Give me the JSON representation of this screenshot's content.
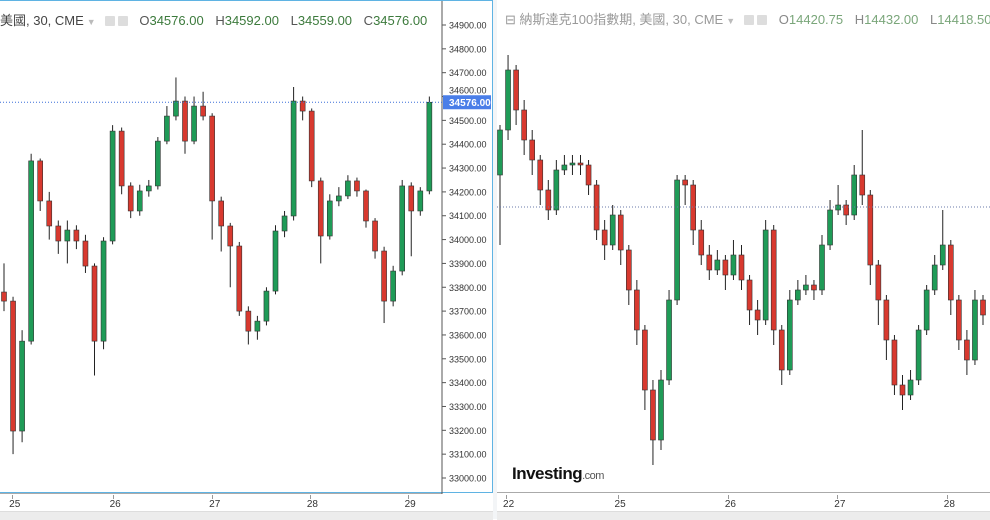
{
  "colors": {
    "up": "#1f9b57",
    "down": "#d8392f",
    "wick": "#222222",
    "price_line": "#3a6fd8",
    "price_label_bg": "#4a7ee8",
    "right_line": "#6a7aa8"
  },
  "left": {
    "title": "美國, 30, CME",
    "ohlc": {
      "o_label": "O",
      "o": "34576.00",
      "h_label": "H",
      "h": "34592.00",
      "l_label": "L",
      "l": "34559.00",
      "c_label": "C",
      "c": "34576.00"
    },
    "last_price_label": "34576.00"
  },
  "right": {
    "title": "納斯達克100指數期, 美國, 30, CME",
    "ohlc": {
      "o_label": "O",
      "o": "14420.75",
      "h_label": "H",
      "h": "14432.00",
      "l_label": "L",
      "l": "14418.50"
    },
    "logo": "Investing",
    "logo_suffix": ".com"
  },
  "chart_data": [
    {
      "type": "candlestick",
      "ylim": [
        33000,
        34900
      ],
      "yticks": [
        "34900.00",
        "34800.00",
        "34700.00",
        "34600.00",
        "34500.00",
        "34400.00",
        "34300.00",
        "34200.00",
        "34100.00",
        "34000.00",
        "33900.00",
        "33800.00",
        "33700.00",
        "33600.00",
        "33500.00",
        "33400.00",
        "33300.00",
        "33200.00",
        "33100.00",
        "33000.00"
      ],
      "xticks": [
        {
          "label": "25",
          "index": 0.9
        },
        {
          "label": "26",
          "index": 12
        },
        {
          "label": "27",
          "index": 23
        },
        {
          "label": "28",
          "index": 33.8
        },
        {
          "label": "29",
          "index": 44.6
        }
      ],
      "last_price": 34576,
      "candles": [
        [
          33780,
          33900,
          33700,
          33742
        ],
        [
          33742,
          33760,
          33100,
          33197
        ],
        [
          33197,
          33620,
          33150,
          33574
        ],
        [
          33574,
          34360,
          33560,
          34330
        ],
        [
          34330,
          34340,
          34120,
          34162
        ],
        [
          34162,
          34200,
          34000,
          34057
        ],
        [
          34057,
          34080,
          33940,
          33994
        ],
        [
          33994,
          34080,
          33900,
          34040
        ],
        [
          34040,
          34060,
          33960,
          33994
        ],
        [
          33994,
          34020,
          33860,
          33889
        ],
        [
          33889,
          33900,
          33430,
          33574
        ],
        [
          33574,
          34010,
          33540,
          33994
        ],
        [
          33994,
          34480,
          33980,
          34455
        ],
        [
          34455,
          34470,
          34190,
          34225
        ],
        [
          34225,
          34240,
          34090,
          34120
        ],
        [
          34120,
          34230,
          34100,
          34204
        ],
        [
          34204,
          34250,
          34180,
          34225
        ],
        [
          34225,
          34430,
          34210,
          34413
        ],
        [
          34413,
          34560,
          34400,
          34518
        ],
        [
          34518,
          34680,
          34500,
          34581
        ],
        [
          34581,
          34600,
          34360,
          34413
        ],
        [
          34413,
          34600,
          34400,
          34560
        ],
        [
          34560,
          34620,
          34500,
          34518
        ],
        [
          34518,
          34530,
          34000,
          34162
        ],
        [
          34162,
          34180,
          33950,
          34057
        ],
        [
          34057,
          34070,
          33800,
          33973
        ],
        [
          33973,
          33990,
          33680,
          33700
        ],
        [
          33700,
          33720,
          33560,
          33616
        ],
        [
          33616,
          33680,
          33580,
          33658
        ],
        [
          33658,
          33800,
          33640,
          33784
        ],
        [
          33784,
          34060,
          33770,
          34036
        ],
        [
          34036,
          34120,
          34010,
          34099
        ],
        [
          34099,
          34640,
          34080,
          34581
        ],
        [
          34581,
          34600,
          34500,
          34539
        ],
        [
          34539,
          34550,
          34220,
          34246
        ],
        [
          34246,
          34260,
          33900,
          34015
        ],
        [
          34015,
          34190,
          34000,
          34162
        ],
        [
          34162,
          34220,
          34140,
          34183
        ],
        [
          34183,
          34270,
          34170,
          34246
        ],
        [
          34246,
          34260,
          34180,
          34204
        ],
        [
          34204,
          34210,
          34050,
          34078
        ],
        [
          34078,
          34090,
          33920,
          33952
        ],
        [
          33952,
          33970,
          33650,
          33742
        ],
        [
          33742,
          33890,
          33720,
          33868
        ],
        [
          33868,
          34250,
          33850,
          34225
        ],
        [
          34225,
          34240,
          33930,
          34120
        ],
        [
          34120,
          34220,
          34100,
          34204
        ],
        [
          34204,
          34600,
          34190,
          34576
        ]
      ]
    },
    {
      "type": "candlestick",
      "ylim": [
        14070,
        15050
      ],
      "xticks": [
        {
          "label": "22",
          "index": 0.75
        },
        {
          "label": "25",
          "index": 14.6
        },
        {
          "label": "26",
          "index": 28.3
        },
        {
          "label": "27",
          "index": 41.9
        },
        {
          "label": "28",
          "index": 55.5
        }
      ],
      "reference_line": 14636,
      "candles": [
        [
          14700,
          14800,
          14560,
          14790
        ],
        [
          14790,
          14940,
          14770,
          14910
        ],
        [
          14910,
          14920,
          14800,
          14830
        ],
        [
          14830,
          14850,
          14740,
          14770
        ],
        [
          14770,
          14790,
          14700,
          14730
        ],
        [
          14730,
          14740,
          14640,
          14670
        ],
        [
          14670,
          14690,
          14610,
          14630
        ],
        [
          14630,
          14730,
          14620,
          14710
        ],
        [
          14710,
          14740,
          14700,
          14720
        ],
        [
          14720,
          14740,
          14700,
          14724
        ],
        [
          14724,
          14740,
          14700,
          14720
        ],
        [
          14720,
          14730,
          14660,
          14680
        ],
        [
          14680,
          14690,
          14570,
          14590
        ],
        [
          14590,
          14610,
          14530,
          14560
        ],
        [
          14560,
          14640,
          14550,
          14620
        ],
        [
          14620,
          14630,
          14520,
          14550
        ],
        [
          14550,
          14560,
          14440,
          14470
        ],
        [
          14470,
          14490,
          14360,
          14390
        ],
        [
          14390,
          14400,
          14230,
          14270
        ],
        [
          14270,
          14290,
          14120,
          14170
        ],
        [
          14170,
          14310,
          14150,
          14290
        ],
        [
          14290,
          14470,
          14280,
          14450
        ],
        [
          14450,
          14700,
          14440,
          14690
        ],
        [
          14690,
          14700,
          14640,
          14680
        ],
        [
          14680,
          14690,
          14560,
          14590
        ],
        [
          14590,
          14610,
          14520,
          14540
        ],
        [
          14540,
          14560,
          14490,
          14510
        ],
        [
          14510,
          14550,
          14500,
          14530
        ],
        [
          14530,
          14540,
          14470,
          14500
        ],
        [
          14500,
          14570,
          14490,
          14540
        ],
        [
          14540,
          14560,
          14470,
          14490
        ],
        [
          14490,
          14500,
          14400,
          14430
        ],
        [
          14430,
          14450,
          14380,
          14410
        ],
        [
          14410,
          14610,
          14400,
          14590
        ],
        [
          14590,
          14600,
          14360,
          14390
        ],
        [
          14390,
          14400,
          14280,
          14310
        ],
        [
          14310,
          14470,
          14300,
          14450
        ],
        [
          14450,
          14490,
          14440,
          14470
        ],
        [
          14470,
          14500,
          14460,
          14480
        ],
        [
          14480,
          14490,
          14450,
          14470
        ],
        [
          14470,
          14580,
          14460,
          14560
        ],
        [
          14560,
          14650,
          14550,
          14630
        ],
        [
          14630,
          14680,
          14620,
          14640
        ],
        [
          14640,
          14650,
          14600,
          14620
        ],
        [
          14620,
          14720,
          14610,
          14700
        ],
        [
          14700,
          14790,
          14640,
          14660
        ],
        [
          14660,
          14670,
          14480,
          14520
        ],
        [
          14520,
          14530,
          14400,
          14450
        ],
        [
          14450,
          14460,
          14330,
          14370
        ],
        [
          14370,
          14380,
          14260,
          14280
        ],
        [
          14280,
          14300,
          14230,
          14260
        ],
        [
          14260,
          14310,
          14250,
          14290
        ],
        [
          14290,
          14400,
          14280,
          14390
        ],
        [
          14390,
          14480,
          14380,
          14470
        ],
        [
          14470,
          14540,
          14460,
          14520
        ],
        [
          14520,
          14630,
          14510,
          14560
        ],
        [
          14560,
          14570,
          14420,
          14450
        ],
        [
          14450,
          14460,
          14350,
          14370
        ],
        [
          14370,
          14390,
          14300,
          14330
        ],
        [
          14330,
          14470,
          14320,
          14450
        ],
        [
          14450,
          14460,
          14400,
          14420
        ]
      ]
    }
  ]
}
